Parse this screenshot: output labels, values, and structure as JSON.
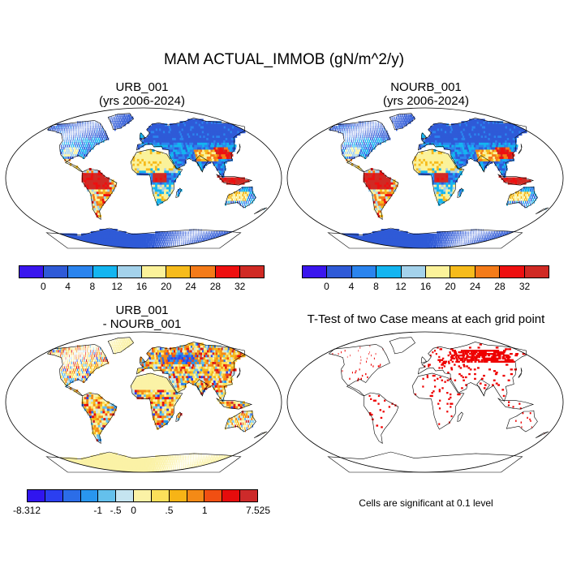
{
  "figure": {
    "title": "MAM ACTUAL_IMMOB (gN/m^2/y)"
  },
  "panels": [
    {
      "line1": "URB_001",
      "line2": "(yrs 2006-2024)"
    },
    {
      "line1": "NOURB_001",
      "line2": "(yrs 2006-2024)"
    },
    {
      "line1": "URB_001",
      "line2": "- NOURB_001"
    },
    {
      "line1": "T-Test of two Case means at each grid point",
      "line2": ""
    }
  ],
  "colorbar_main": {
    "colors": [
      "#3a16ee",
      "#2f5ad7",
      "#2b84ee",
      "#14b5f0",
      "#a4d2eb",
      "#fbf29a",
      "#f6bb1c",
      "#f47b19",
      "#ee1010",
      "#d02a24"
    ],
    "labels": [
      "0",
      "4",
      "8",
      "12",
      "16",
      "20",
      "24",
      "28",
      "32"
    ]
  },
  "colorbar_diff": {
    "colors": [
      "#3015ef",
      "#2b3ff0",
      "#2b6de8",
      "#2996ef",
      "#64c0ec",
      "#c5e4f0",
      "#fbf2a6",
      "#fbe05a",
      "#f7b416",
      "#f48a16",
      "#f14f12",
      "#e60c0c",
      "#cd2a2a"
    ],
    "labels": [
      "-8.312",
      "-1",
      "-.5",
      "0",
      ".5",
      "1",
      "7.525"
    ]
  },
  "significance_note": "Cells are significant at 0.1 level",
  "colors": {
    "ocean": "#ffffff",
    "land_outline": "#000000",
    "significant": "#ee0000"
  }
}
